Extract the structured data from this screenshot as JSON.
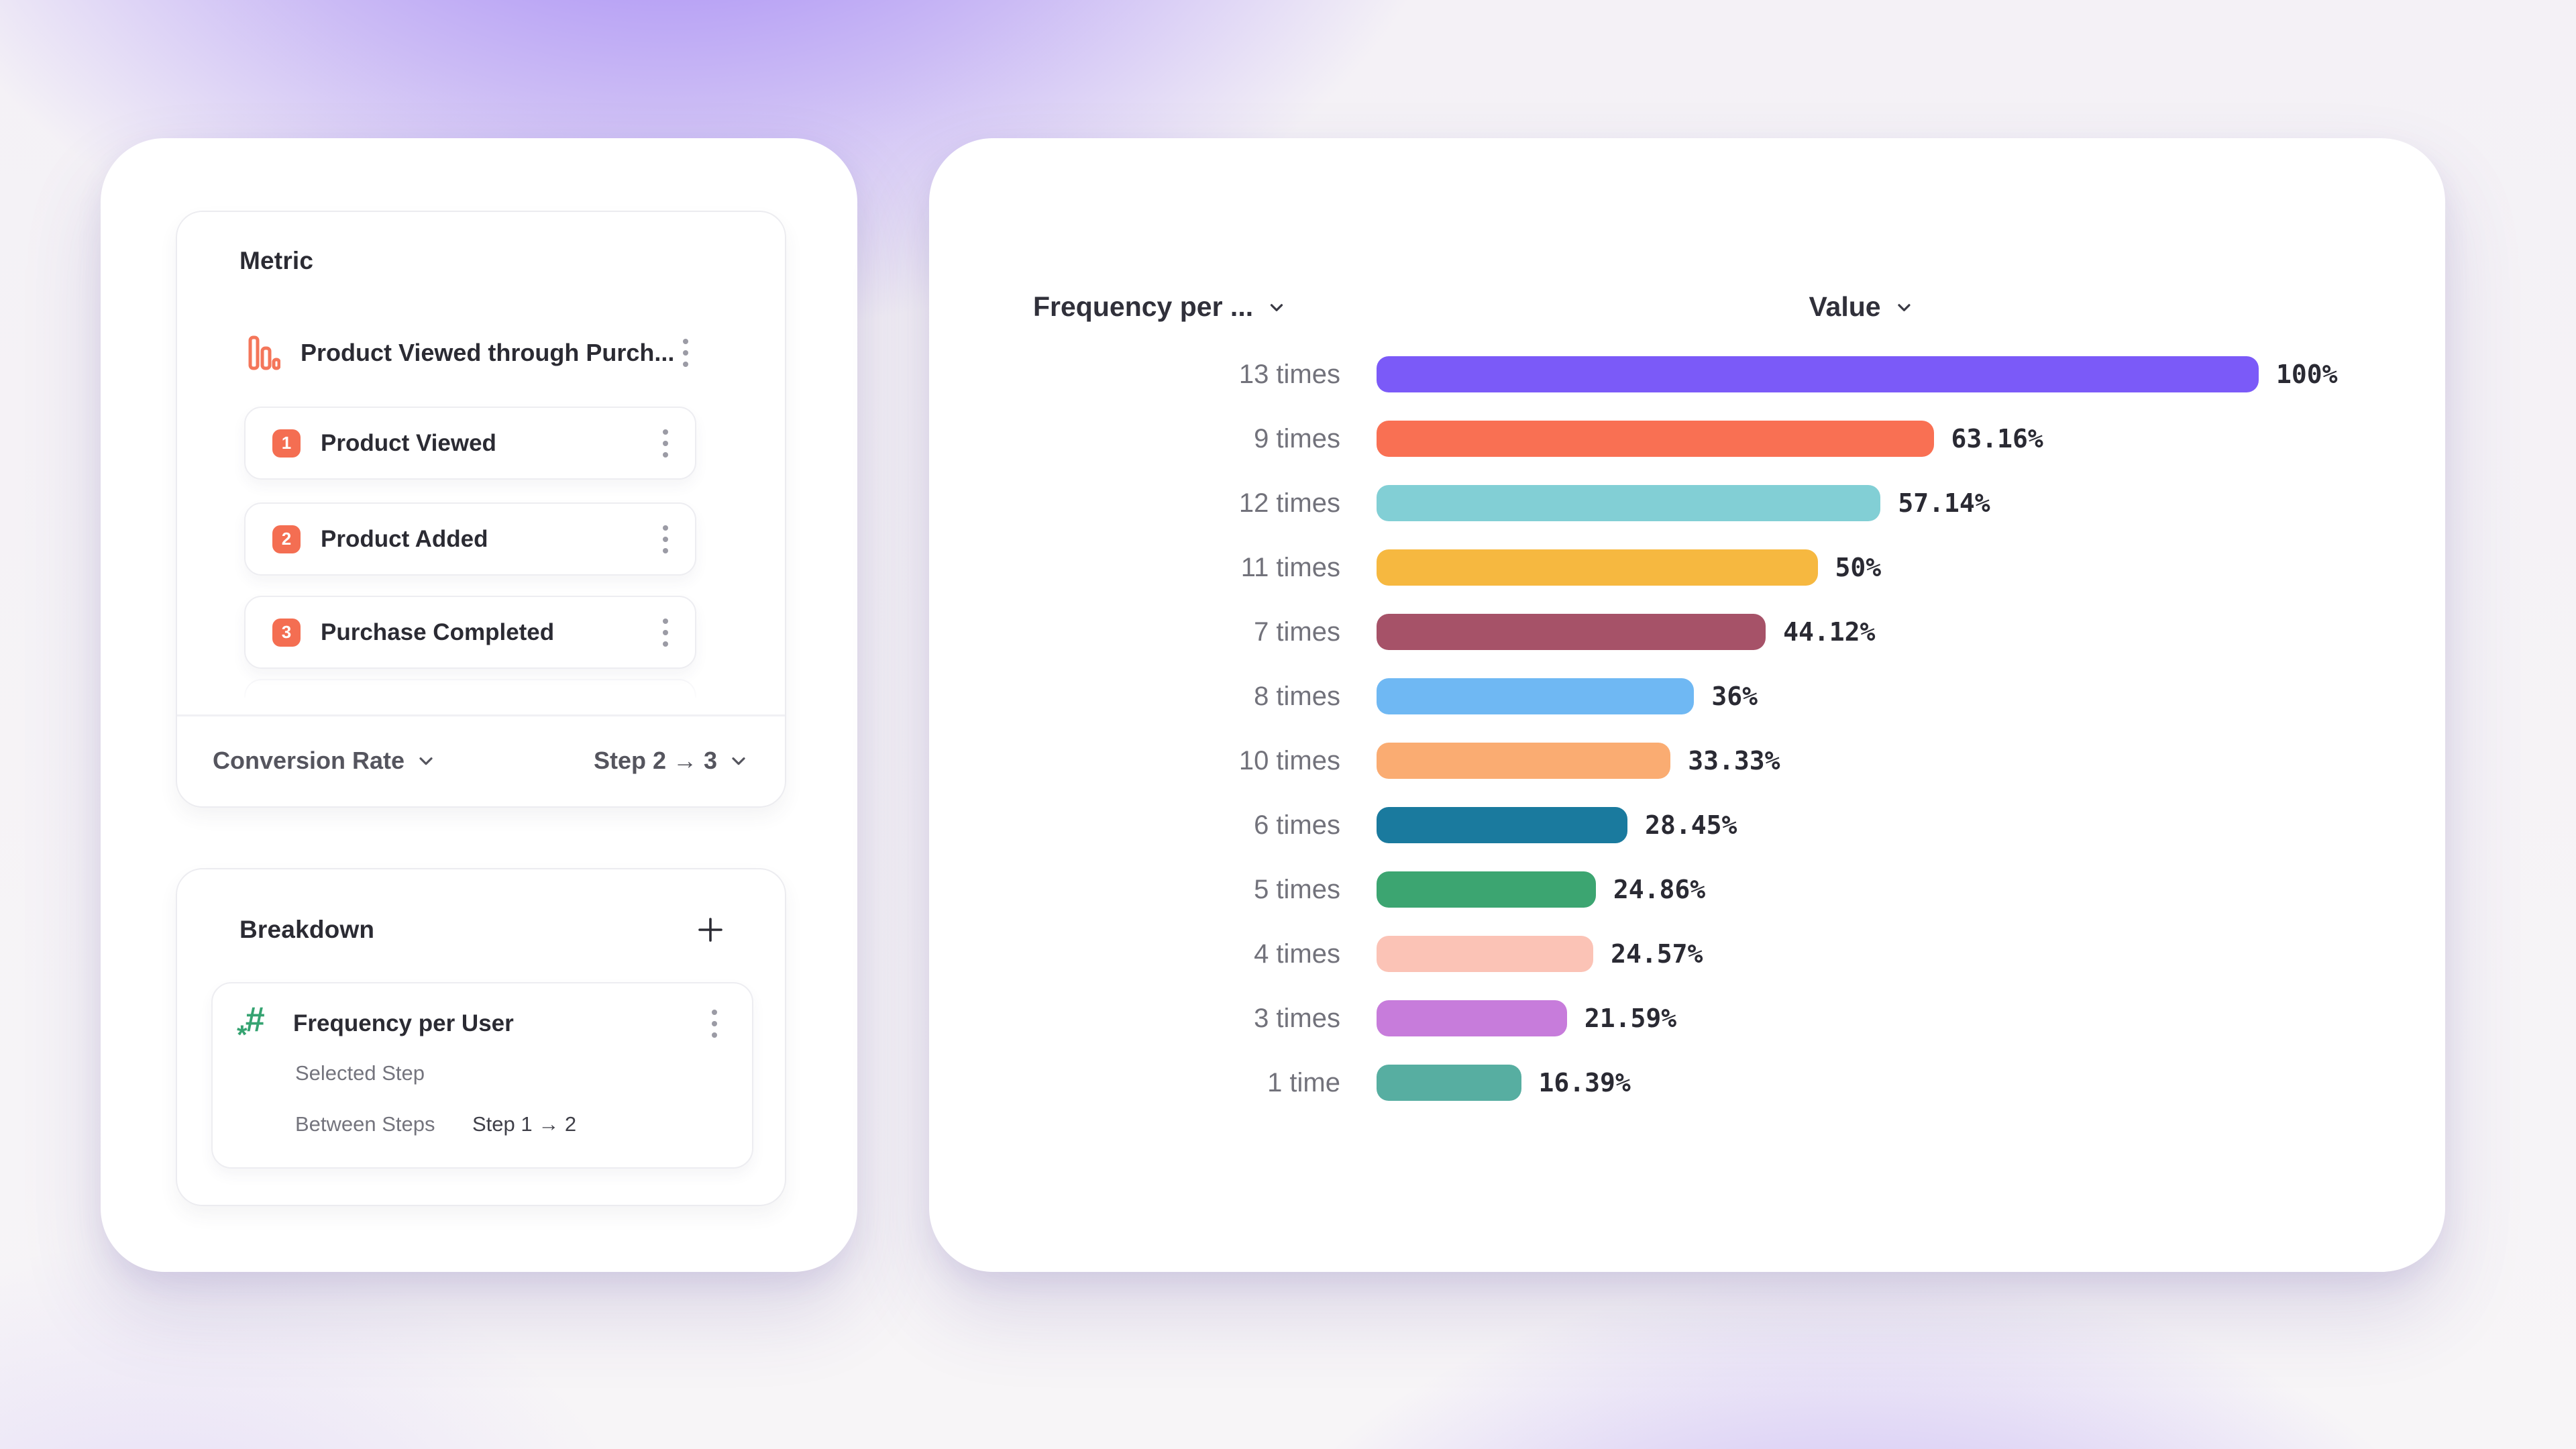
{
  "colors": {
    "background_glow": "#8863F4",
    "card": "#FFFFFF",
    "accent_coral": "#F4765A",
    "badge": "#F46E52",
    "hash_green": "#35A371",
    "text_dark": "#2B2B33",
    "text_gray": "#72727B",
    "text_medium": "#55555E",
    "border": "#ECECF0"
  },
  "metric": {
    "title": "Metric",
    "funnel_name": "Product Viewed through Purch...",
    "steps": [
      {
        "number": "1",
        "label": "Product Viewed"
      },
      {
        "number": "2",
        "label": "Product Added"
      },
      {
        "number": "3",
        "label": "Purchase Completed"
      }
    ],
    "footer": {
      "conversion_label": "Conversion Rate",
      "step_range_label": "Step 2 → 3"
    }
  },
  "breakdown": {
    "title": "Breakdown",
    "add_label": "+",
    "item_name": "Frequency per User",
    "selected_step_label": "Selected Step",
    "between_steps_label": "Between Steps",
    "between_steps_value": "Step 1 → 2"
  },
  "chart": {
    "category_header": "Frequency per ...",
    "value_header": "Value"
  },
  "chart_data": {
    "type": "bar",
    "orientation": "horizontal",
    "categories": [
      "13 times",
      "9 times",
      "12 times",
      "11 times",
      "7 times",
      "8 times",
      "10 times",
      "6 times",
      "5 times",
      "4 times",
      "3 times",
      "1 time"
    ],
    "values": [
      100,
      63.16,
      57.14,
      50,
      44.12,
      36,
      33.33,
      28.45,
      24.86,
      24.57,
      21.59,
      16.39
    ],
    "value_labels": [
      "100%",
      "63.16%",
      "57.14%",
      "50%",
      "44.12%",
      "36%",
      "33.33%",
      "28.45%",
      "24.86%",
      "24.57%",
      "21.59%",
      "16.39%"
    ],
    "colors": [
      "#7B5AF8",
      "#F97053",
      "#82CFD5",
      "#F6B840",
      "#A65268",
      "#6FB8F3",
      "#FAAC72",
      "#1A7A9E",
      "#3CA571",
      "#FBC3B6",
      "#C77CDB",
      "#57AEA1"
    ],
    "xlim": [
      0,
      100
    ],
    "unit": "%",
    "grid": false,
    "legend": false
  }
}
